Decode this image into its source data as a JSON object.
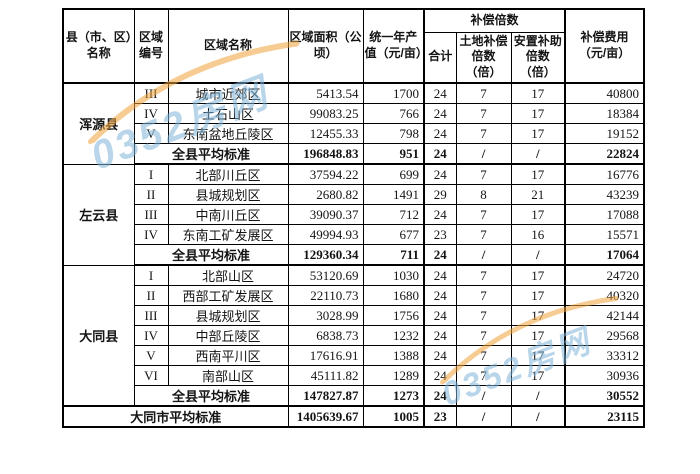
{
  "table": {
    "header": {
      "county": "县（市、区）名称",
      "region_no": "区域编号",
      "region_name": "区域名称",
      "area": "区域面积（公顷）",
      "output_value": "统一年产值（元/亩）",
      "multiples_group": "补偿倍数",
      "total": "合计",
      "land_multiple": "土地补偿倍数（倍）",
      "resettlement_multiple": "安置补助倍数（倍）",
      "fee": "补偿费用（元/亩）"
    },
    "counties": [
      {
        "name": "浑源县",
        "rows": [
          {
            "no": "III",
            "region": "城市近郊区",
            "area": "5413.54",
            "value": "1700",
            "total": "24",
            "land": "7",
            "resettle": "17",
            "fee": "40800"
          },
          {
            "no": "IV",
            "region": "土石山区",
            "area": "99083.25",
            "value": "766",
            "total": "24",
            "land": "7",
            "resettle": "17",
            "fee": "18384"
          },
          {
            "no": "V",
            "region": "东南盆地丘陵区",
            "area": "12455.33",
            "value": "798",
            "total": "24",
            "land": "7",
            "resettle": "17",
            "fee": "19152"
          }
        ],
        "average": {
          "label": "全县平均标准",
          "area": "196848.83",
          "value": "951",
          "total": "24",
          "land": "/",
          "resettle": "/",
          "fee": "22824"
        }
      },
      {
        "name": "左云县",
        "rows": [
          {
            "no": "I",
            "region": "北部川丘区",
            "area": "37594.22",
            "value": "699",
            "total": "24",
            "land": "7",
            "resettle": "17",
            "fee": "16776"
          },
          {
            "no": "II",
            "region": "县城规划区",
            "area": "2680.82",
            "value": "1491",
            "total": "29",
            "land": "8",
            "resettle": "21",
            "fee": "43239"
          },
          {
            "no": "III",
            "region": "中南川丘区",
            "area": "39090.37",
            "value": "712",
            "total": "24",
            "land": "7",
            "resettle": "17",
            "fee": "17088"
          },
          {
            "no": "IV",
            "region": "东南工矿发展区",
            "area": "49994.93",
            "value": "677",
            "total": "23",
            "land": "7",
            "resettle": "16",
            "fee": "15571"
          }
        ],
        "average": {
          "label": "全县平均标准",
          "area": "129360.34",
          "value": "711",
          "total": "24",
          "land": "/",
          "resettle": "/",
          "fee": "17064"
        }
      },
      {
        "name": "大同县",
        "rows": [
          {
            "no": "I",
            "region": "北部山区",
            "area": "53120.69",
            "value": "1030",
            "total": "24",
            "land": "7",
            "resettle": "17",
            "fee": "24720"
          },
          {
            "no": "II",
            "region": "西部工矿发展区",
            "area": "22110.73",
            "value": "1680",
            "total": "24",
            "land": "7",
            "resettle": "17",
            "fee": "40320"
          },
          {
            "no": "III",
            "region": "县城规划区",
            "area": "3028.99",
            "value": "1756",
            "total": "24",
            "land": "7",
            "resettle": "17",
            "fee": "42144"
          },
          {
            "no": "IV",
            "region": "中部丘陵区",
            "area": "6838.73",
            "value": "1232",
            "total": "24",
            "land": "7",
            "resettle": "17",
            "fee": "29568"
          },
          {
            "no": "V",
            "region": "西南平川区",
            "area": "17616.91",
            "value": "1388",
            "total": "24",
            "land": "7",
            "resettle": "17",
            "fee": "33312"
          },
          {
            "no": "VI",
            "region": "南部山区",
            "area": "45111.82",
            "value": "1289",
            "total": "24",
            "land": "7",
            "resettle": "17",
            "fee": "30936"
          }
        ],
        "average": {
          "label": "全县平均标准",
          "area": "147827.87",
          "value": "1273",
          "total": "24",
          "land": "/",
          "resettle": "/",
          "fee": "30552"
        }
      }
    ],
    "city_average": {
      "label": "大同市平均标准",
      "area": "1405639.67",
      "value": "1005",
      "total": "23",
      "land": "/",
      "resettle": "/",
      "fee": "23115"
    }
  },
  "watermark": {
    "text": "0352房网",
    "text_color": "#7fb3d8",
    "swoosh_color": "#f0a43c"
  }
}
